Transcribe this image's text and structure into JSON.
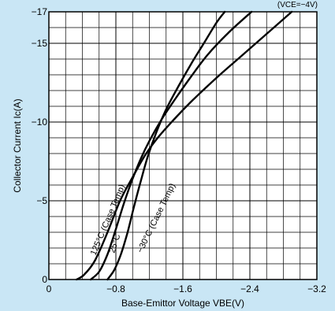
{
  "chart_data": {
    "type": "line",
    "title": "",
    "condition_label": "(VCE=−4V)",
    "xlabel": "Base-Emittor Voltage VBE(V)",
    "ylabel": "Collector Current Ic(A)",
    "xlim": [
      0,
      -3.2
    ],
    "ylim": [
      0,
      -17
    ],
    "x_ticks": [
      0,
      -0.8,
      -1.6,
      -2.4,
      -3.2
    ],
    "x_tick_labels": [
      "0",
      "−0.8",
      "−1.6",
      "−2.4",
      "−3.2"
    ],
    "y_ticks": [
      0,
      -5,
      -10,
      -15,
      -17
    ],
    "y_tick_labels": [
      "0",
      "−5",
      "−10",
      "−15",
      "−17"
    ],
    "grid": true,
    "series": [
      {
        "name": "125°C (Case Temp)",
        "x": [
          -0.33,
          -0.42,
          -0.55,
          -0.7,
          -0.85,
          -1.0,
          -1.15,
          -1.3,
          -1.5,
          -1.7,
          -2.0,
          -2.3,
          -2.6,
          -2.9
        ],
        "y": [
          0,
          -0.3,
          -1.2,
          -3.0,
          -5.0,
          -6.5,
          -7.9,
          -9.0,
          -10.2,
          -11.3,
          -12.8,
          -14.2,
          -15.6,
          -17
        ]
      },
      {
        "name": "25°C",
        "x": [
          -0.5,
          -0.6,
          -0.7,
          -0.8,
          -0.9,
          -1.0,
          -1.1,
          -1.2,
          -1.35,
          -1.5,
          -1.7,
          -1.9,
          -2.15,
          -2.42
        ],
        "y": [
          0,
          -0.5,
          -1.6,
          -3.2,
          -4.9,
          -6.4,
          -7.7,
          -8.8,
          -10.2,
          -11.4,
          -12.9,
          -14.3,
          -15.7,
          -17
        ]
      },
      {
        "name": "−30°C (Case Temp)",
        "x": [
          -0.7,
          -0.78,
          -0.86,
          -0.94,
          -1.02,
          -1.1,
          -1.18,
          -1.28,
          -1.4,
          -1.55,
          -1.7,
          -1.85,
          -2.0,
          -2.1
        ],
        "y": [
          0,
          -0.6,
          -1.6,
          -3.0,
          -4.7,
          -6.3,
          -7.8,
          -9.3,
          -10.8,
          -12.3,
          -13.7,
          -15.0,
          -16.3,
          -17
        ]
      }
    ]
  }
}
